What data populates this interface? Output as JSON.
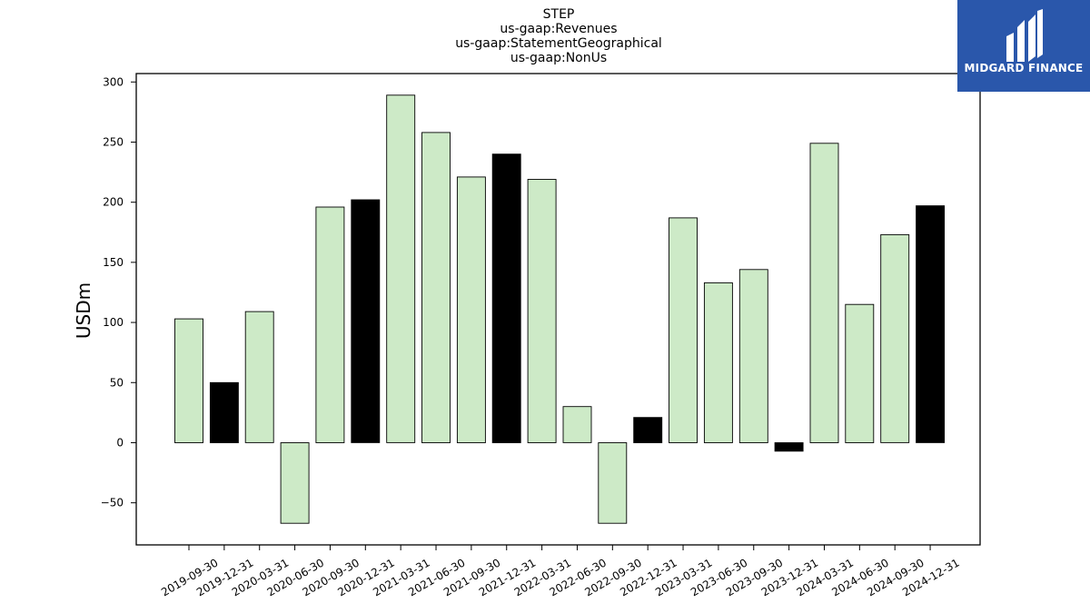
{
  "chart_data": {
    "type": "bar",
    "title_lines": [
      "STEP",
      "us-gaap:Revenues",
      "us-gaap:StatementGeographical",
      "us-gaap:NonUs"
    ],
    "ylabel": "USDm",
    "ylim": [
      -85,
      307
    ],
    "yticks": [
      -50,
      0,
      50,
      100,
      150,
      200,
      250,
      300
    ],
    "ytick_labels": [
      "−50",
      "0",
      "50",
      "100",
      "150",
      "200",
      "250",
      "300"
    ],
    "categories": [
      "2019-09-30",
      "2019-12-31",
      "2020-03-31",
      "2020-06-30",
      "2020-09-30",
      "2020-12-31",
      "2021-03-31",
      "2021-06-30",
      "2021-09-30",
      "2021-12-31",
      "2022-03-31",
      "2022-06-30",
      "2022-09-30",
      "2022-12-31",
      "2023-03-31",
      "2023-06-30",
      "2023-09-30",
      "2023-12-31",
      "2024-03-31",
      "2024-06-30",
      "2024-09-30",
      "2024-12-31"
    ],
    "values": [
      103,
      50,
      109,
      -67,
      196,
      202,
      289,
      258,
      221,
      240,
      219,
      30,
      -67,
      21,
      187,
      133,
      144,
      -7,
      249,
      115,
      173,
      197
    ],
    "highlighted": [
      false,
      true,
      false,
      false,
      false,
      true,
      false,
      false,
      false,
      true,
      false,
      false,
      false,
      true,
      false,
      false,
      false,
      true,
      false,
      false,
      false,
      true
    ],
    "colors": {
      "default": "#cdeac7",
      "highlight": "#000000",
      "edge": "#000000"
    },
    "grid": false
  },
  "logo": {
    "text": "MIDGARD FINANCE",
    "background": "#2a57ab"
  }
}
